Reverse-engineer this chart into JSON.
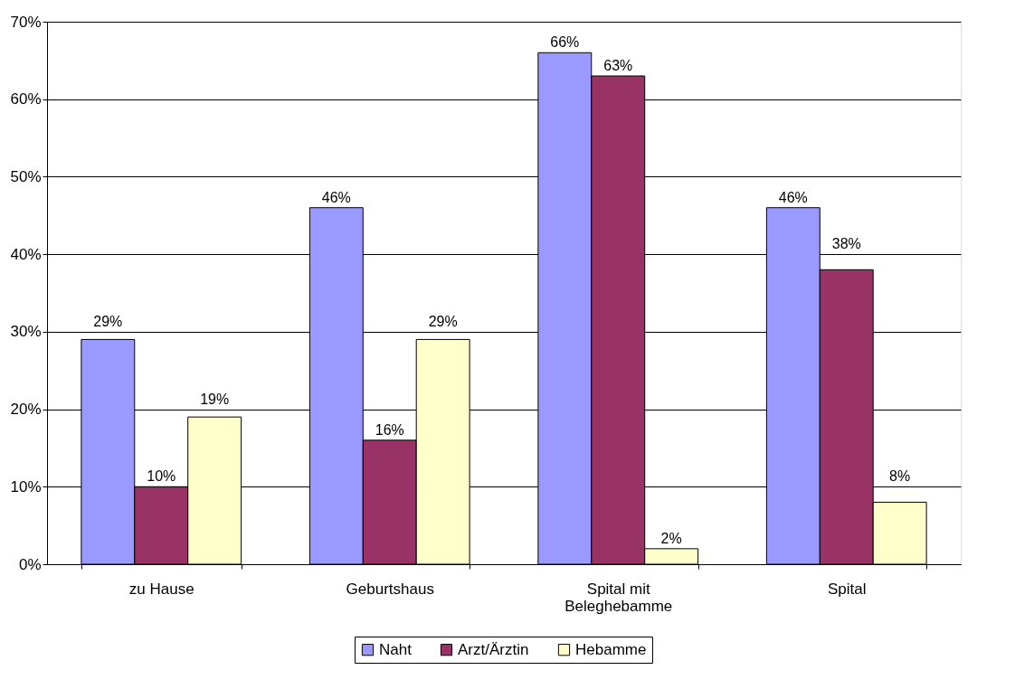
{
  "chart_data": {
    "type": "bar",
    "categories": [
      "zu Hause",
      "Geburtshaus",
      "Spital mit Beleghebamme",
      "Spital"
    ],
    "series": [
      {
        "name": "Naht",
        "color": "#9999ff",
        "values": [
          29,
          46,
          66,
          46
        ],
        "value_labels": [
          "29%",
          "46%",
          "66%",
          "46%"
        ]
      },
      {
        "name": "Arzt/Ärztin",
        "color": "#993366",
        "values": [
          10,
          16,
          63,
          38
        ],
        "value_labels": [
          "10%",
          "16%",
          "63%",
          "38%"
        ]
      },
      {
        "name": "Hebamme",
        "color": "#ffffcc",
        "values": [
          19,
          29,
          2,
          8
        ],
        "value_labels": [
          "19%",
          "29%",
          "2%",
          "8%"
        ]
      }
    ],
    "ylim": [
      0,
      70
    ],
    "yticks": [
      {
        "value": 0,
        "label": "0%"
      },
      {
        "value": 10,
        "label": "10%"
      },
      {
        "value": 20,
        "label": "20%"
      },
      {
        "value": 30,
        "label": "30%"
      },
      {
        "value": 40,
        "label": "40%"
      },
      {
        "value": 50,
        "label": "50%"
      },
      {
        "value": 60,
        "label": "60%"
      },
      {
        "value": 70,
        "label": "70%"
      }
    ],
    "grid": "y",
    "legend": "bottom"
  }
}
